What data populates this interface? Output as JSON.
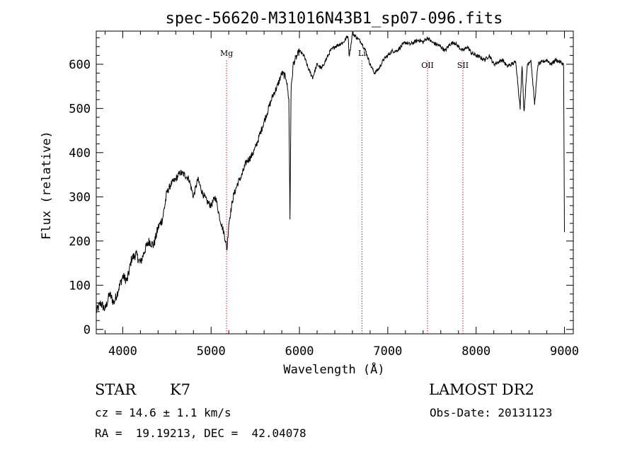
{
  "chart_data": {
    "type": "line",
    "title": "spec-56620-M31016N43B1_sp07-096.fits",
    "xlabel": "Wavelength (Å)",
    "ylabel": "Flux (relative)",
    "xlim": [
      3700,
      9100
    ],
    "ylim": [
      -10,
      675
    ],
    "xticks": [
      4000,
      5000,
      6000,
      7000,
      8000,
      9000
    ],
    "yticks": [
      0,
      100,
      200,
      300,
      400,
      500,
      600
    ],
    "grid": false,
    "series": [
      {
        "x": [
          3700,
          3750,
          3800,
          3850,
          3900,
          3950,
          4000,
          4050,
          4100,
          4150,
          4200,
          4250,
          4300,
          4350,
          4400,
          4450,
          4500,
          4550,
          4600,
          4650,
          4700,
          4750,
          4800,
          4850,
          4900,
          4950,
          5000,
          5050,
          5100,
          5150,
          5180,
          5200,
          5250,
          5300,
          5350,
          5400,
          5450,
          5500,
          5550,
          5600,
          5650,
          5700,
          5750,
          5800,
          5850,
          5880,
          5893,
          5905,
          5930,
          5950,
          6000,
          6050,
          6100,
          6150,
          6200,
          6250,
          6300,
          6350,
          6400,
          6450,
          6500,
          6550,
          6563,
          6580,
          6600,
          6650,
          6700,
          6750,
          6800,
          6850,
          6900,
          6950,
          7000,
          7050,
          7100,
          7150,
          7200,
          7250,
          7300,
          7350,
          7400,
          7450,
          7500,
          7550,
          7600,
          7650,
          7700,
          7750,
          7800,
          7850,
          7900,
          7950,
          8000,
          8050,
          8100,
          8150,
          8200,
          8250,
          8300,
          8350,
          8400,
          8450,
          8498,
          8520,
          8542,
          8580,
          8620,
          8662,
          8700,
          8750,
          8800,
          8850,
          8900,
          8950,
          8990,
          9000
        ],
        "y": [
          40,
          60,
          45,
          80,
          60,
          90,
          120,
          110,
          160,
          170,
          150,
          180,
          200,
          190,
          230,
          250,
          310,
          330,
          340,
          355,
          350,
          340,
          300,
          340,
          310,
          290,
          280,
          300,
          250,
          215,
          180,
          240,
          300,
          330,
          350,
          380,
          390,
          410,
          440,
          470,
          500,
          530,
          550,
          580,
          570,
          520,
          250,
          540,
          600,
          610,
          630,
          620,
          590,
          570,
          600,
          590,
          610,
          630,
          640,
          645,
          650,
          665,
          620,
          640,
          670,
          660,
          650,
          630,
          600,
          580,
          590,
          610,
          620,
          630,
          630,
          640,
          650,
          645,
          650,
          655,
          650,
          660,
          650,
          645,
          640,
          630,
          645,
          650,
          640,
          630,
          640,
          625,
          620,
          615,
          610,
          620,
          600,
          605,
          610,
          595,
          600,
          605,
          500,
          600,
          490,
          600,
          610,
          510,
          600,
          605,
          610,
          600,
          610,
          605,
          600,
          220
        ]
      }
    ],
    "lines": [
      {
        "label": "Mg",
        "x": 5175
      },
      {
        "label": "Li",
        "x": 6708
      },
      {
        "label": "OII",
        "x": 7450
      },
      {
        "label": "SII",
        "x": 7850
      }
    ]
  },
  "info": {
    "object_type": "STAR",
    "subclass": "K7",
    "survey": "LAMOST DR2",
    "redshift": "cz = 14.6 ± 1.1 km/s",
    "obs_date": "Obs-Date: 20131123",
    "coords": "RA =  19.19213, DEC =  42.04078"
  }
}
